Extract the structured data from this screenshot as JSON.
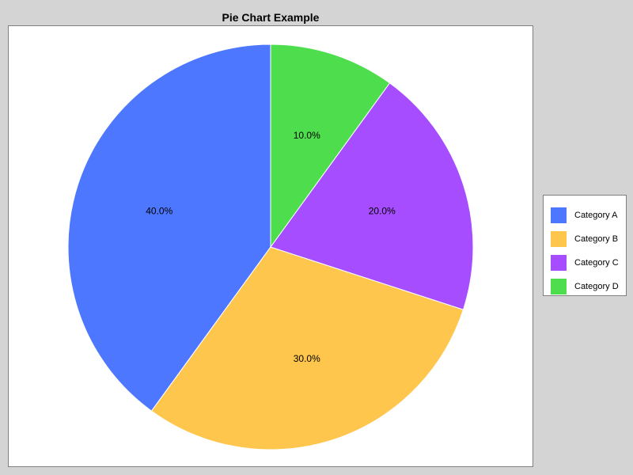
{
  "chart_data": {
    "type": "pie",
    "title": "Pie Chart Example",
    "slices": [
      {
        "name": "Category A",
        "value": 40,
        "label": "40.0%",
        "color": "#4d77ff"
      },
      {
        "name": "Category B",
        "value": 30,
        "label": "30.0%",
        "color": "#ffc64d"
      },
      {
        "name": "Category C",
        "value": 20,
        "label": "20.0%",
        "color": "#a64dff"
      },
      {
        "name": "Category D",
        "value": 10,
        "label": "10.0%",
        "color": "#4ddd4d"
      }
    ],
    "legend_position": "right",
    "start_angle_deg": 90,
    "direction": "counterclockwise"
  }
}
